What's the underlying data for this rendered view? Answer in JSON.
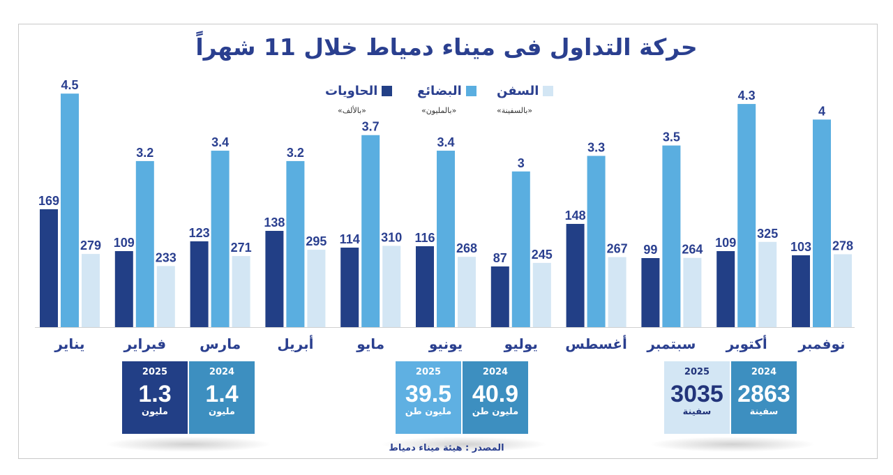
{
  "title": "حركة التداول فى ميناء دمياط خلال 11 شهراً",
  "legend": [
    {
      "label": "السفن",
      "unit": "«بالسفينة»",
      "color": "#d3e6f4"
    },
    {
      "label": "البضائع",
      "unit": "«بالمليون»",
      "color": "#5aaee0"
    },
    {
      "label": "الحاويات",
      "unit": "«بالألف»",
      "color": "#223f86"
    }
  ],
  "chart_data": {
    "type": "bar",
    "title": "حركة التداول فى ميناء دمياط خلال 11 شهراً",
    "categories": [
      "يناير",
      "فبراير",
      "مارس",
      "أبريل",
      "مايو",
      "يونيو",
      "يوليو",
      "أغسطس",
      "سبتمبر",
      "أكتوبر",
      "نوفمبر"
    ],
    "series": [
      {
        "name": "الحاويات",
        "unit": "«بالألف»",
        "color": "#223f86",
        "values": [
          169,
          109,
          123,
          138,
          114,
          116,
          87,
          148,
          99,
          109,
          103
        ],
        "labels": [
          "169",
          "109",
          "123",
          "138",
          "114",
          "116",
          "87",
          "148",
          "99",
          "109",
          "103"
        ]
      },
      {
        "name": "البضائع",
        "unit": "«بالمليون»",
        "color": "#5aaee0",
        "values": [
          4.5,
          3.2,
          3.4,
          3.2,
          3.7,
          3.4,
          3,
          3.3,
          3.5,
          4.3,
          4
        ],
        "labels": [
          "4.5",
          "3.2",
          "3.4",
          "3.2",
          "3.7",
          "3.4",
          "3",
          "3.3",
          "3.5",
          "4.3",
          "4"
        ]
      },
      {
        "name": "السفن",
        "unit": "«بالسفينة»",
        "color": "#d3e6f4",
        "values": [
          279,
          233,
          271,
          295,
          310,
          268,
          245,
          267,
          264,
          325,
          278
        ],
        "labels": [
          "279",
          "233",
          "271",
          "295",
          "310",
          "268",
          "245",
          "267",
          "264",
          "325",
          "278"
        ]
      }
    ]
  },
  "summary": {
    "containers": {
      "y2025": {
        "year": "2025",
        "value": "1.3",
        "unit": "مليون",
        "color": "#223f86"
      },
      "y2024": {
        "year": "2024",
        "value": "1.4",
        "unit": "مليون",
        "color": "#3d8fc0"
      }
    },
    "cargo": {
      "y2025": {
        "year": "2025",
        "value": "39.5",
        "unit": "مليون طن",
        "color": "#5fb0e2"
      },
      "y2024": {
        "year": "2024",
        "value": "40.9",
        "unit": "مليون طن",
        "color": "#3d8fc0"
      }
    },
    "ships": {
      "y2025": {
        "year": "2025",
        "value": "3035",
        "unit": "سفينة",
        "color": "#d3e6f4"
      },
      "y2024": {
        "year": "2024",
        "value": "2863",
        "unit": "سفينة",
        "color": "#3d8fc0"
      }
    }
  },
  "source": "المصدر : هيئة ميناء دمياط"
}
